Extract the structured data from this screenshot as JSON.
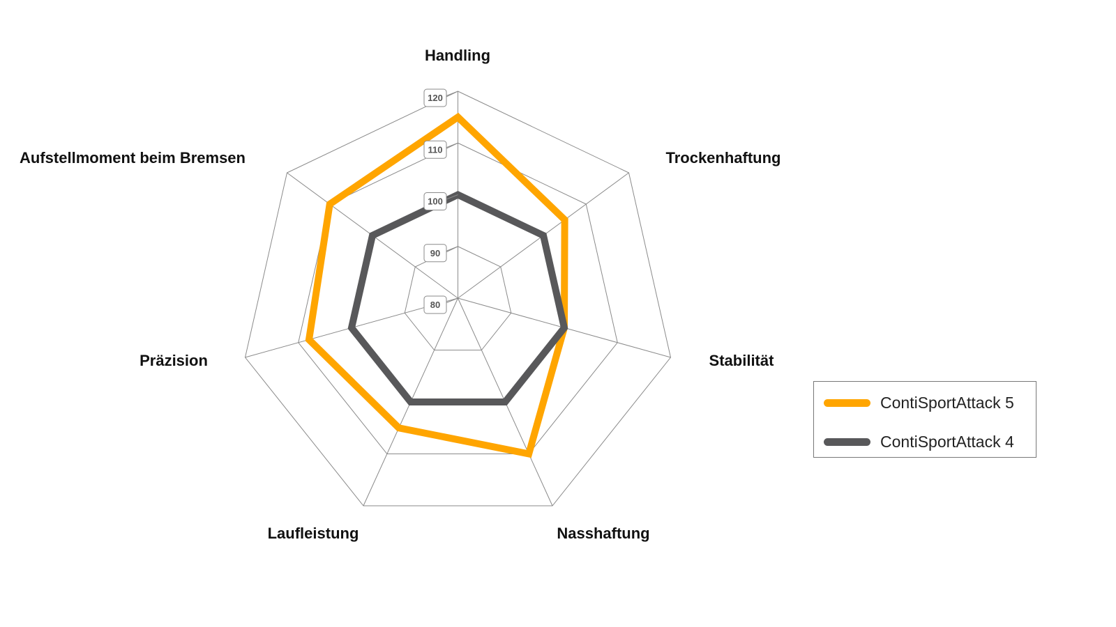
{
  "chart_data": {
    "type": "radar",
    "axes": [
      "Handling",
      "Trockenhaftung",
      "Stabilität",
      "Nasshaftung",
      "Laufleistung",
      "Präzision",
      "Aufstellmoment beim Bremsen"
    ],
    "rlim": [
      80,
      120
    ],
    "ticks": [
      80,
      90,
      100,
      110,
      120
    ],
    "grid": true,
    "legend_position": "right",
    "series": [
      {
        "name": "ContiSportAttack 5",
        "color": "#FFA500",
        "values": [
          115,
          105,
          100,
          110,
          105,
          108,
          110
        ]
      },
      {
        "name": "ContiSportAttack 4",
        "color": "#58585A",
        "values": [
          100,
          100,
          100,
          100,
          100,
          100,
          100
        ]
      }
    ]
  }
}
